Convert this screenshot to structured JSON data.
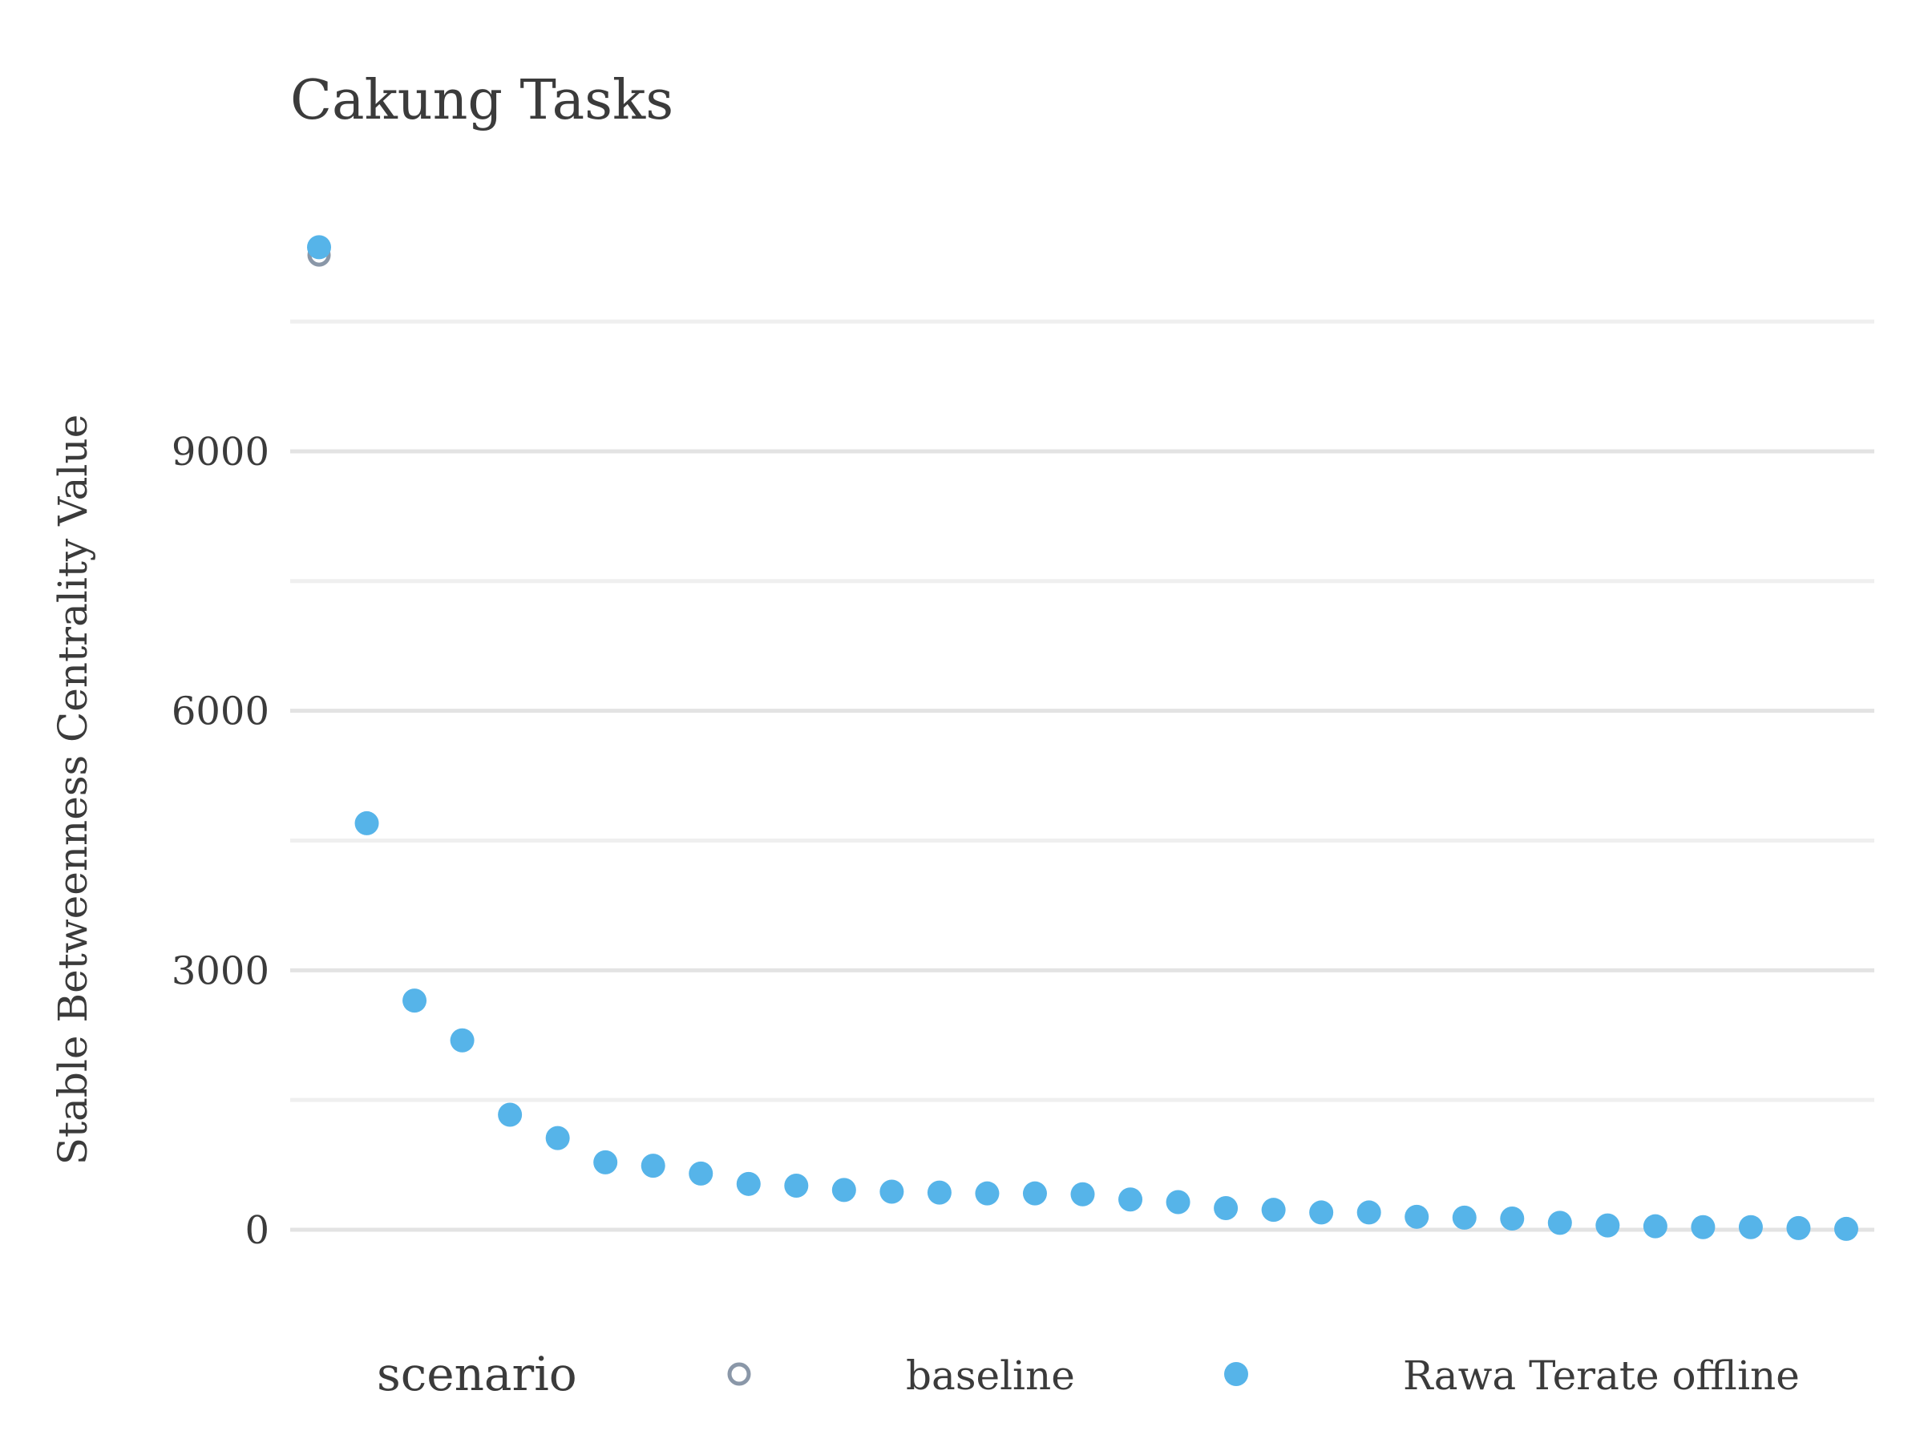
{
  "chart_data": {
    "type": "scatter",
    "title": "Cakung Tasks",
    "xlabel": "",
    "ylabel": "Stable Betweenness Centrality Value",
    "ylim": [
      -700,
      11800
    ],
    "yticks": [
      0,
      3000,
      6000,
      9000
    ],
    "x_axis_visible": false,
    "grid": true,
    "legend": {
      "title": "scenario",
      "position": "bottom",
      "entries": [
        {
          "label": "baseline",
          "marker": "open-circle",
          "color": "#8a97a8"
        },
        {
          "label": "Rawa Terate offline",
          "marker": "filled-circle",
          "color": "#56b4e9"
        }
      ]
    },
    "x": [
      1,
      2,
      3,
      4,
      5,
      6,
      7,
      8,
      9,
      10,
      11,
      12,
      13,
      14,
      15,
      16,
      17,
      18,
      19,
      20,
      21,
      22,
      23,
      24,
      25,
      26,
      27,
      28,
      29,
      30,
      31,
      32,
      33
    ],
    "series": [
      {
        "name": "baseline",
        "color": "#8a97a8",
        "marker": "open-circle",
        "values": [
          11270,
          4700,
          2650,
          2190,
          1330,
          1060,
          780,
          740,
          650,
          530,
          510,
          460,
          440,
          430,
          420,
          420,
          410,
          350,
          320,
          250,
          230,
          200,
          200,
          150,
          140,
          130,
          80,
          50,
          40,
          30,
          30,
          20,
          10
        ]
      },
      {
        "name": "Rawa Terate offline",
        "color": "#56b4e9",
        "marker": "filled-circle",
        "values": [
          11360,
          4700,
          2650,
          2190,
          1330,
          1060,
          780,
          740,
          650,
          530,
          510,
          460,
          440,
          430,
          420,
          420,
          410,
          350,
          320,
          250,
          230,
          200,
          200,
          150,
          140,
          130,
          80,
          50,
          40,
          30,
          30,
          20,
          10
        ]
      }
    ]
  }
}
